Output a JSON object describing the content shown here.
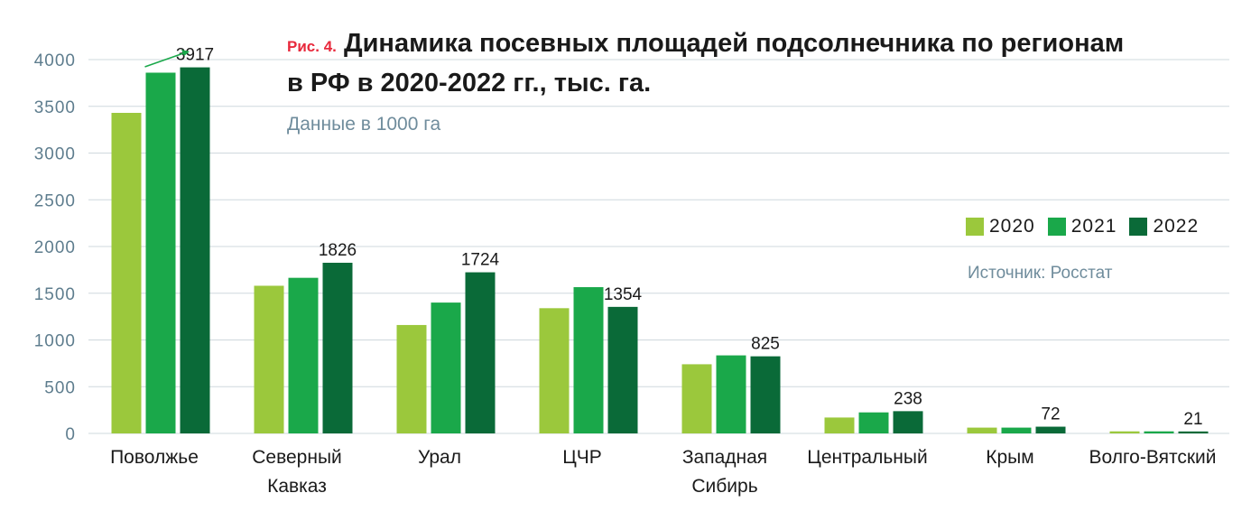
{
  "header": {
    "fig_label": "Рис. 4.",
    "title_line1": "Динамика посевных площадей подсолнечника  по регионам",
    "title_line2": "в РФ в 2020-2022 гг., тыс. га.",
    "subtitle": "Данные в 1000 га",
    "source": "Источник: Росстат"
  },
  "colors": {
    "2020": "#9bc83c",
    "2021": "#1aa84a",
    "2022": "#0a6a38",
    "grid": "#cfd8dd",
    "axis_text": "#5e7d8e",
    "arrow": "#1aa84a"
  },
  "chart_data": {
    "type": "bar",
    "categories": [
      "Поволжье",
      "Северный\nКавказ",
      "Урал",
      "ЦЧР",
      "Западная\nСибирь",
      "Центральный",
      "Крым",
      "Волго-Вятский"
    ],
    "series": [
      {
        "name": "2020",
        "values": [
          3430,
          1580,
          1160,
          1340,
          740,
          170,
          62,
          22
        ]
      },
      {
        "name": "2021",
        "values": [
          3860,
          1665,
          1400,
          1565,
          835,
          225,
          62,
          22
        ]
      },
      {
        "name": "2022",
        "values": [
          3917,
          1826,
          1724,
          1354,
          825,
          238,
          72,
          21
        ]
      }
    ],
    "data_labels": [
      "3917",
      "1826",
      "1724",
      "1354",
      "825",
      "238",
      "72",
      "21"
    ],
    "ylim": [
      0,
      4000
    ],
    "yticks": [
      0,
      500,
      1000,
      1500,
      2000,
      2500,
      3000,
      3500,
      4000
    ],
    "grid": true,
    "legend_position": "right"
  }
}
